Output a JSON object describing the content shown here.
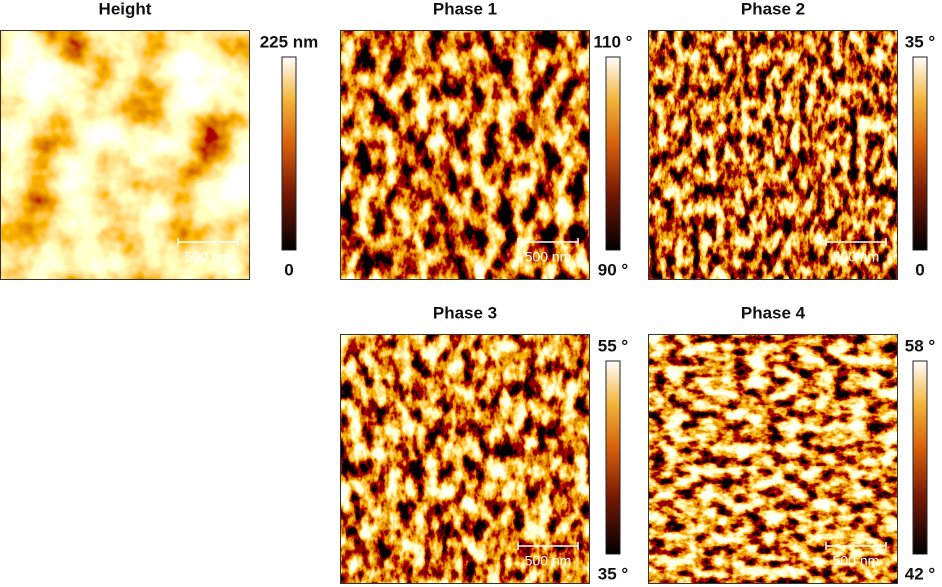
{
  "panels": [
    {
      "title": "Height",
      "scale_max": "225 nm",
      "scale_min": "0",
      "scale_bar": "500 nm"
    },
    {
      "title": "Phase 1",
      "scale_max": "110 °",
      "scale_min": "90 °",
      "scale_bar": "500 nm"
    },
    {
      "title": "Phase 2",
      "scale_max": "35 °",
      "scale_min": "0",
      "scale_bar": "500 nm"
    },
    {
      "title": "Phase 3",
      "scale_max": "55 °",
      "scale_min": "35 °",
      "scale_bar": "500 nm"
    },
    {
      "title": "Phase 4",
      "scale_max": "58 °",
      "scale_min": "42 °",
      "scale_bar": "500 nm"
    }
  ]
}
